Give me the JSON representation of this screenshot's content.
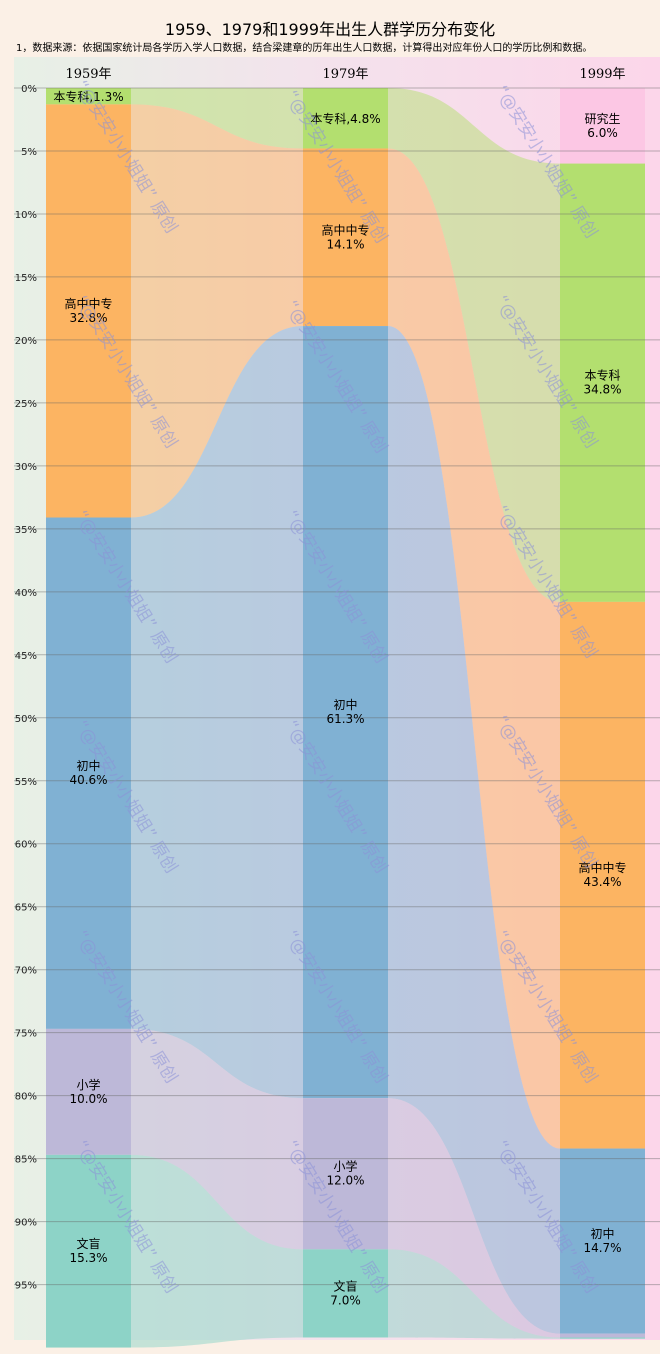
{
  "chart_data": {
    "type": "sankey",
    "title": "1959、1979和1999年出生人群学历分布变化",
    "note": "1，数据来源：依据国家统计局各学历入学人口数据，结合梁建章的历年出生人口数据，计算得出对应年份人口的学历比例和数据。",
    "y_axis": {
      "ylim": [
        0,
        100
      ],
      "ticks": [
        "0%",
        "5%",
        "10%",
        "15%",
        "20%",
        "25%",
        "30%",
        "35%",
        "40%",
        "45%",
        "50%",
        "55%",
        "60%",
        "65%",
        "70%",
        "75%",
        "80%",
        "85%",
        "90%",
        "95%"
      ],
      "grid": true
    },
    "categories": [
      "研究生",
      "本专科",
      "高中中专",
      "初中",
      "小学",
      "文盲"
    ],
    "colors": {
      "研究生": "#fcc7e4",
      "本专科": "#b3df6f",
      "高中中专": "#fcb462",
      "初中": "#80b1d3",
      "小学": "#bdb8d8",
      "文盲": "#8dd3c7"
    },
    "columns": [
      {
        "year": "1959年",
        "segments": [
          {
            "name": "本专科",
            "value": 1.3,
            "label": "本专科,1.3%"
          },
          {
            "name": "高中中专",
            "value": 32.8,
            "label_name": "高中中专",
            "label_value": "32.8%"
          },
          {
            "name": "初中",
            "value": 40.6,
            "label_name": "初中",
            "label_value": "40.6%"
          },
          {
            "name": "小学",
            "value": 10.0,
            "label_name": "小学",
            "label_value": "10.0%"
          },
          {
            "name": "文盲",
            "value": 15.3,
            "label_name": "文盲",
            "label_value": "15.3%"
          }
        ]
      },
      {
        "year": "1979年",
        "segments": [
          {
            "name": "本专科",
            "value": 4.8,
            "label": "本专科,4.8%"
          },
          {
            "name": "高中中专",
            "value": 14.1,
            "label_name": "高中中专",
            "label_value": "14.1%"
          },
          {
            "name": "初中",
            "value": 61.3,
            "label_name": "初中",
            "label_value": "61.3%"
          },
          {
            "name": "小学",
            "value": 12.0,
            "label_name": "小学",
            "label_value": "12.0%"
          },
          {
            "name": "文盲",
            "value": 7.0,
            "label_name": "文盲",
            "label_value": "7.0%"
          }
        ]
      },
      {
        "year": "1999年",
        "segments": [
          {
            "name": "研究生",
            "value": 6.0,
            "label_name": "研究生",
            "label_value": "6.0%"
          },
          {
            "name": "本专科",
            "value": 34.8,
            "label_name": "本专科",
            "label_value": "34.8%"
          },
          {
            "name": "高中中专",
            "value": 43.4,
            "label_name": "高中中专",
            "label_value": "43.4%"
          },
          {
            "name": "初中",
            "value": 14.7,
            "label_name": "初中",
            "label_value": "14.7%"
          },
          {
            "name": "小学",
            "value": 0.3
          },
          {
            "name": "文盲",
            "value": 0.1
          }
        ]
      }
    ],
    "watermark": "“@安安小小姐姐” 原创"
  }
}
